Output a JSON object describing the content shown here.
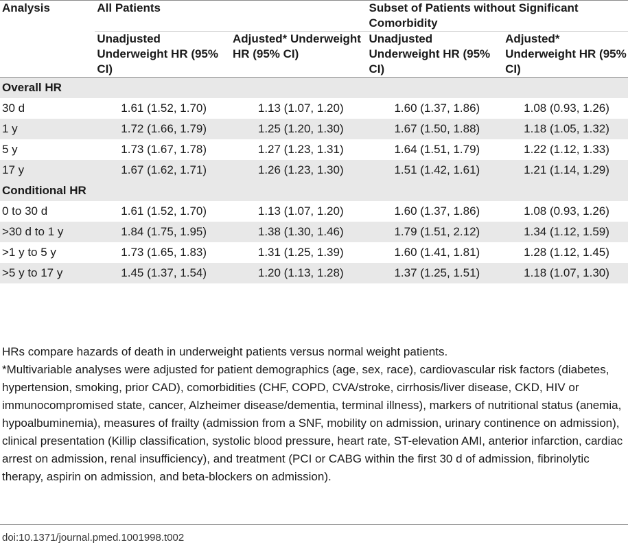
{
  "header": {
    "analysis": "Analysis",
    "all_patients": "All Patients",
    "subset": "Subset of Patients without Significant Comorbidity",
    "col_unadjusted": "Unadjusted Underweight HR (95% CI)",
    "col_adjusted": "Adjusted* Underweight HR (95% CI)",
    "col_unadjusted_2": "Unadjusted Underweight HR (95% CI)",
    "col_adjusted_2": "Adjusted* Underweight HR (95% CI)"
  },
  "sections": [
    {
      "title": "Overall HR",
      "rows": [
        {
          "label": "30 d",
          "values": [
            "1.61 (1.52, 1.70)",
            "1.13 (1.07, 1.20)",
            "1.60 (1.37, 1.86)",
            "1.08 (0.93, 1.26)"
          ]
        },
        {
          "label": "1 y",
          "values": [
            "1.72 (1.66, 1.79)",
            "1.25 (1.20, 1.30)",
            "1.67 (1.50, 1.88)",
            "1.18 (1.05, 1.32)"
          ]
        },
        {
          "label": "5 y",
          "values": [
            "1.73 (1.67, 1.78)",
            "1.27 (1.23, 1.31)",
            "1.64 (1.51, 1.79)",
            "1.22 (1.12, 1.33)"
          ]
        },
        {
          "label": "17 y",
          "values": [
            "1.67 (1.62, 1.71)",
            "1.26 (1.23, 1.30)",
            "1.51 (1.42, 1.61)",
            "1.21 (1.14, 1.29)"
          ]
        }
      ]
    },
    {
      "title": "Conditional HR",
      "rows": [
        {
          "label": "0 to 30 d",
          "values": [
            "1.61 (1.52, 1.70)",
            "1.13 (1.07, 1.20)",
            "1.60 (1.37, 1.86)",
            "1.08 (0.93, 1.26)"
          ]
        },
        {
          "label": ">30 d to 1 y",
          "values": [
            "1.84 (1.75, 1.95)",
            "1.38 (1.30, 1.46)",
            "1.79 (1.51, 2.12)",
            "1.34 (1.12, 1.59)"
          ]
        },
        {
          "label": ">1 y to 5 y",
          "values": [
            "1.73 (1.65, 1.83)",
            "1.31 (1.25, 1.39)",
            "1.60 (1.41, 1.81)",
            "1.28 (1.12, 1.45)"
          ]
        },
        {
          "label": ">5 y to 17 y",
          "values": [
            "1.45 (1.37, 1.54)",
            "1.20 (1.13, 1.28)",
            "1.37 (1.25, 1.51)",
            "1.18 (1.07, 1.30)"
          ]
        }
      ]
    }
  ],
  "footnotes": {
    "note1": "HRs compare hazards of death in underweight patients versus normal weight patients.",
    "note2": "*Multivariable analyses were adjusted for patient demographics (age, sex, race), cardiovascular risk factors (diabetes, hypertension, smoking, prior CAD), comorbidities (CHF, COPD, CVA/stroke, cirrhosis/liver disease, CKD, HIV or immunocompromised state, cancer, Alzheimer disease/dementia, terminal illness), markers of nutritional status (anemia, hypoalbuminemia), measures of frailty (admission from a SNF, mobility on admission, urinary continence on admission), clinical presentation (Killip classification, systolic blood pressure, heart rate, ST-elevation AMI, anterior infarction, cardiac arrest on admission, renal insufficiency), and treatment (PCI or CABG within the first 30 d of admission, fibrinolytic therapy, aspirin on admission, and beta-blockers on admission)."
  },
  "doi": "doi:10.1371/journal.pmed.1001998.t002",
  "colors": {
    "shade": "#e8e8e8",
    "rule": "#8a8a8a",
    "text": "#1a1a1a"
  }
}
